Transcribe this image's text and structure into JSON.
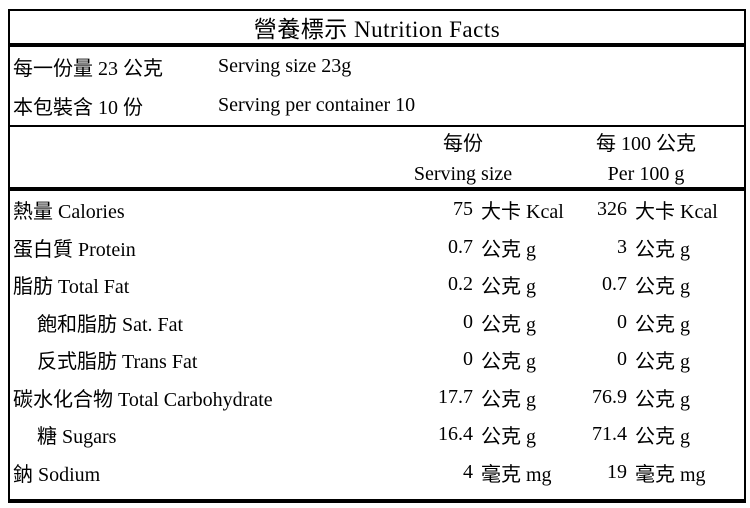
{
  "title": "營養標示 Nutrition Facts",
  "serving_info": {
    "serving_size": {
      "zh": "每一份量 23 公克",
      "en": "Serving size 23g"
    },
    "servings_per_container": {
      "zh": "本包裝含 10 份",
      "en": "Serving per container 10"
    }
  },
  "columns": {
    "per_serving": {
      "zh": "每份",
      "en": "Serving size"
    },
    "per_100g": {
      "zh": "每 100 公克",
      "en": "Per 100 g"
    }
  },
  "table": {
    "rows": [
      {
        "label": "熱量 Calories",
        "per_serving": {
          "value": "75",
          "unit": "大卡 Kcal"
        },
        "per_100g": {
          "value": "326",
          "unit": "大卡 Kcal"
        }
      },
      {
        "label": "蛋白質 Protein",
        "per_serving": {
          "value": "0.7",
          "unit": "公克 g"
        },
        "per_100g": {
          "value": "3",
          "unit": "公克 g"
        }
      },
      {
        "label": "脂肪 Total Fat",
        "per_serving": {
          "value": "0.2",
          "unit": "公克 g"
        },
        "per_100g": {
          "value": "0.7",
          "unit": "公克 g"
        }
      },
      {
        "label": "飽和脂肪 Sat. Fat",
        "per_serving": {
          "value": "0",
          "unit": "公克 g"
        },
        "per_100g": {
          "value": "0",
          "unit": "公克 g"
        }
      },
      {
        "label": "反式脂肪 Trans Fat",
        "per_serving": {
          "value": "0",
          "unit": "公克 g"
        },
        "per_100g": {
          "value": "0",
          "unit": "公克 g"
        }
      },
      {
        "label": "碳水化合物 Total Carbohydrate",
        "per_serving": {
          "value": "17.7",
          "unit": "公克 g"
        },
        "per_100g": {
          "value": "76.9",
          "unit": "公克 g"
        }
      },
      {
        "label": "糖 Sugars",
        "per_serving": {
          "value": "16.4",
          "unit": "公克 g"
        },
        "per_100g": {
          "value": "71.4",
          "unit": "公克 g"
        }
      },
      {
        "label": "鈉 Sodium",
        "per_serving": {
          "value": "4",
          "unit": "毫克 mg"
        },
        "per_100g": {
          "value": "19",
          "unit": "毫克 mg"
        }
      }
    ]
  },
  "colors": {
    "border": "#000000",
    "text": "#000000",
    "background": "#ffffff"
  }
}
